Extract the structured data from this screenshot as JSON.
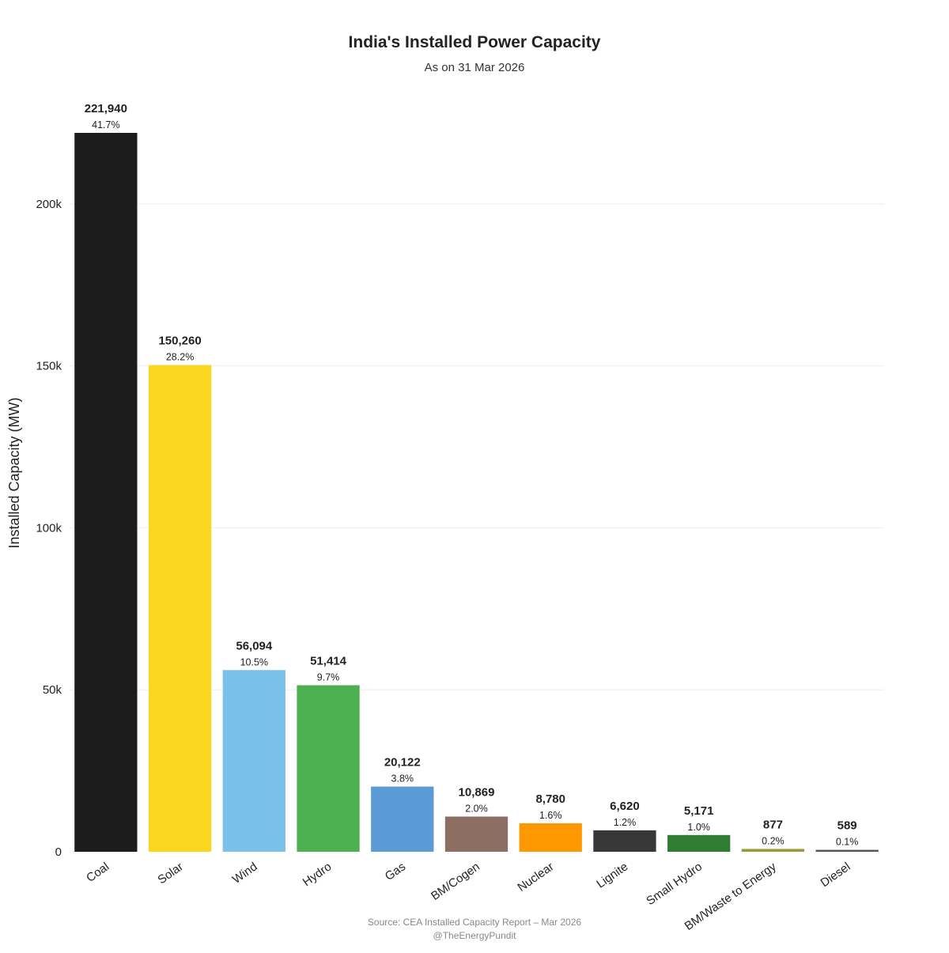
{
  "chart_data": {
    "type": "bar",
    "title": "India's Installed Power Capacity",
    "subtitle": "As on 31 Mar 2026",
    "xlabel": "",
    "ylabel": "Installed Capacity (MW)",
    "ylim": [
      0,
      221940
    ],
    "y_ticks": [
      0,
      50000,
      100000,
      150000,
      200000
    ],
    "y_tick_labels": [
      "0",
      "50k",
      "100k",
      "150k",
      "200k"
    ],
    "grid": true,
    "legend": "none",
    "categories": [
      "Coal",
      "Solar",
      "Wind",
      "Hydro",
      "Gas",
      "BM/Cogen",
      "Nuclear",
      "Lignite",
      "Small Hydro",
      "BM/Waste to Energy",
      "Diesel"
    ],
    "values": [
      221940,
      150260,
      56094,
      51414,
      20122,
      10869,
      8780,
      6620,
      5171,
      877,
      589
    ],
    "value_labels": [
      "221,940",
      "150,260",
      "56,094",
      "51,414",
      "20,122",
      "10,869",
      "8,780",
      "6,620",
      "5,171",
      "877",
      "589"
    ],
    "percent_labels": [
      "41.7%",
      "28.2%",
      "10.5%",
      "9.7%",
      "3.8%",
      "2.0%",
      "1.6%",
      "1.2%",
      "1.0%",
      "0.2%",
      "0.1%"
    ],
    "colors": [
      "#1c1c1c",
      "#f8d71e",
      "#7ac1ea",
      "#4caf50",
      "#5b9bd5",
      "#8d6e63",
      "#ff9800",
      "#383838",
      "#2e7d32",
      "#9c9a38",
      "#555555"
    ],
    "source_lines": [
      "Source: CEA Installed Capacity Report – Mar 2026",
      "@TheEnergyPundit"
    ]
  }
}
